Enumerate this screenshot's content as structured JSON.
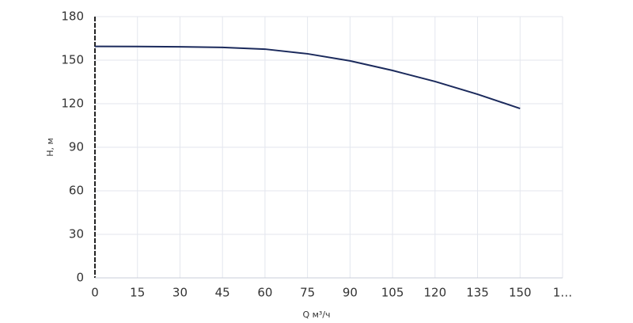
{
  "chart_data": {
    "type": "line",
    "x_label": "Q м³/ч",
    "y_label": "H, м",
    "x": [
      0,
      15,
      30,
      45,
      60,
      75,
      90,
      105,
      120,
      135,
      150
    ],
    "series": [
      {
        "name": "H",
        "color": "#1b2a5c",
        "values": [
          159.5,
          159.4,
          159.2,
          158.8,
          157.6,
          154.4,
          149.5,
          142.9,
          135.3,
          126.5,
          116.7
        ]
      }
    ],
    "xlim": [
      0,
      165
    ],
    "xticks": [
      0,
      15,
      30,
      45,
      60,
      75,
      90,
      105,
      120,
      135,
      150,
      {
        "value": 165,
        "label": "1…"
      }
    ],
    "ylim": [
      0,
      180
    ],
    "yticks": [
      0,
      30,
      60,
      90,
      120,
      150,
      180
    ],
    "grid": true
  }
}
